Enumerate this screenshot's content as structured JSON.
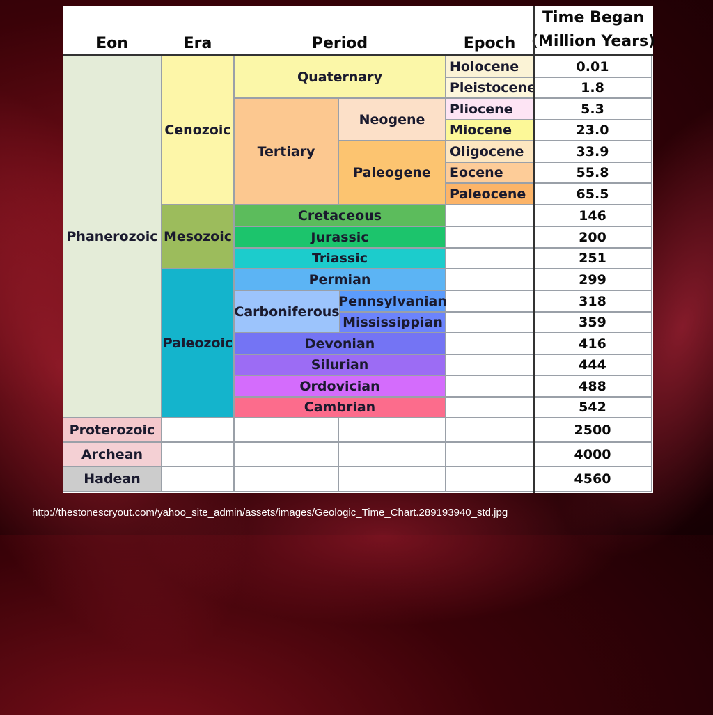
{
  "headers": {
    "eon": "Eon",
    "era": "Era",
    "period": "Period",
    "epoch": "Epoch",
    "time_line1": "Time Began",
    "time_line2": "(Million Years)"
  },
  "eons": {
    "phanerozoic": "Phanerozoic",
    "proterozoic": "Proterozoic",
    "archean": "Archean",
    "hadean": "Hadean"
  },
  "eras": {
    "cenozoic": "Cenozoic",
    "mesozoic": "Mesozoic",
    "paleozoic": "Paleozoic"
  },
  "periods": {
    "quaternary": "Quaternary",
    "tertiary": "Tertiary",
    "neogene": "Neogene",
    "paleogene": "Paleogene",
    "cretaceous": "Cretaceous",
    "jurassic": "Jurassic",
    "triassic": "Triassic",
    "permian": "Permian",
    "carboniferous": "Carboniferous",
    "pennsylvanian": "Pennsylvanian",
    "mississippian": "Mississippian",
    "devonian": "Devonian",
    "silurian": "Silurian",
    "ordovician": "Ordovician",
    "cambrian": "Cambrian"
  },
  "epochs": {
    "holocene": "Holocene",
    "pleistocene": "Pleistocene",
    "pliocene": "Pliocene",
    "miocene": "Miocene",
    "oligocene": "Oligocene",
    "eocene": "Eocene",
    "paleocene": "Paleocene"
  },
  "times": [
    "0.01",
    "1.8",
    "5.3",
    "23.0",
    "33.9",
    "55.8",
    "65.5",
    "146",
    "200",
    "251",
    "299",
    "318",
    "359",
    "416",
    "444",
    "488",
    "542",
    "2500",
    "4000",
    "4560"
  ],
  "colors": {
    "phanerozoic": "#e4ecd8",
    "cenozoic": "#fdf6a8",
    "mesozoic": "#9cbc5c",
    "paleozoic": "#14b4cc",
    "quaternary": "#fbf7a8",
    "tertiary": "#fcc890",
    "neogene": "#fce0c8",
    "paleogene": "#fcc470",
    "holocene": "#fbf3d6",
    "pleistocene": "#fdf7dc",
    "pliocene": "#fde4f4",
    "miocene": "#fcf898",
    "oligocene": "#fde6c0",
    "eocene": "#fdcc98",
    "paleocene": "#fcb468",
    "cretaceous": "#5cbc5c",
    "jurassic": "#1cc46c",
    "triassic": "#1ccccc",
    "permian": "#5cb4f4",
    "carboniferous": "#9cc4fc",
    "pennsylvanian": "#5c9cfc",
    "mississippian": "#6c84fc",
    "devonian": "#7474f4",
    "silurian": "#9c6cf4",
    "ordovician": "#d46cfc",
    "cambrian": "#fc6c8c",
    "proterozoic": "#f4c8cc",
    "archean": "#f4d0d4",
    "hadean": "#cccccc"
  },
  "caption": "http://thestonescryout.com/yahoo_site_admin/assets/images/Geologic_Time_Chart.289193940_std.jpg"
}
